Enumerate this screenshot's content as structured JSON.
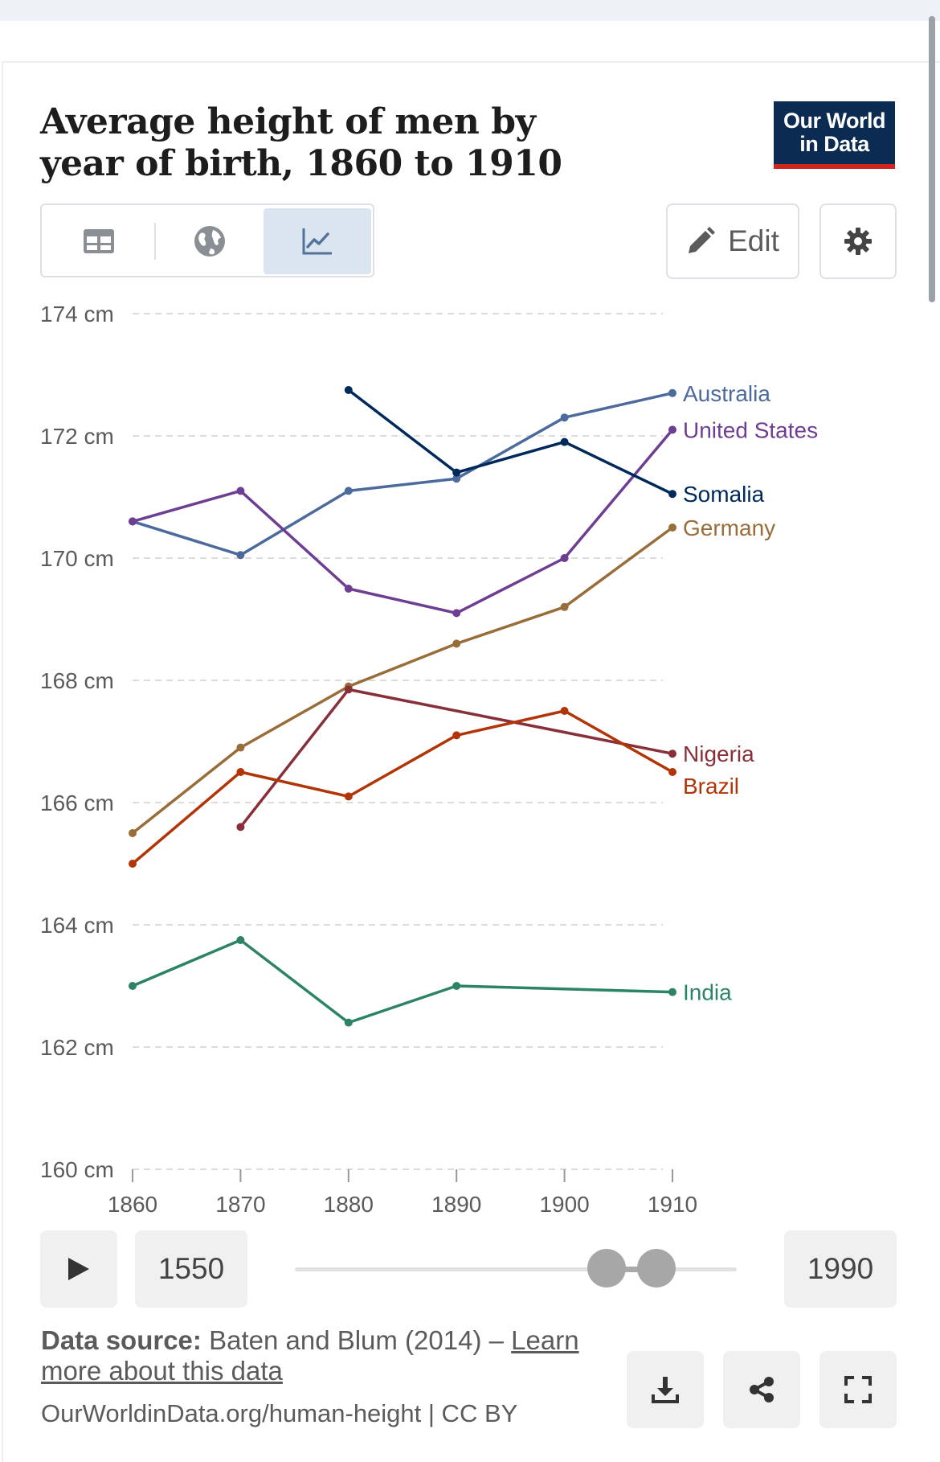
{
  "title": "Average height of men by year of birth, 1860 to 1910",
  "logo": {
    "line1": "Our World",
    "line2": "in Data"
  },
  "tabs": [
    {
      "name": "table",
      "icon": "table-icon",
      "active": false
    },
    {
      "name": "map",
      "icon": "globe-icon",
      "active": false
    },
    {
      "name": "chart",
      "icon": "line-chart-icon",
      "active": true
    }
  ],
  "toolbar": {
    "edit_label": "Edit"
  },
  "timeline": {
    "start_year": "1550",
    "end_year": "1990",
    "selected_range": [
      1860,
      1910
    ]
  },
  "footer": {
    "source_label": "Data source:",
    "source_text": " Baten and Blum (2014) – ",
    "learn_more": "Learn more about this data",
    "url_text": "OurWorldinData.org/human-height | CC BY"
  },
  "colors": {
    "brand_navy": "#0b2b53",
    "brand_red": "#ce261e",
    "active_tab": "#dbe5f0"
  },
  "chart_data": {
    "type": "line",
    "x": [
      1860,
      1870,
      1880,
      1890,
      1900,
      1910
    ],
    "x_ticks": [
      "1860",
      "1870",
      "1880",
      "1890",
      "1900",
      "1910"
    ],
    "y_ticks": [
      "160 cm",
      "162 cm",
      "164 cm",
      "166 cm",
      "168 cm",
      "170 cm",
      "172 cm",
      "174 cm"
    ],
    "ylim": [
      160,
      174
    ],
    "grid": true,
    "legend": "inline-right",
    "series": [
      {
        "name": "Australia",
        "color": "#4c6a9c",
        "values": [
          170.6,
          170.05,
          171.1,
          171.3,
          172.3,
          172.7
        ]
      },
      {
        "name": "United States",
        "color": "#6d3e91",
        "values": [
          170.6,
          171.1,
          169.5,
          169.1,
          170.0,
          172.1
        ]
      },
      {
        "name": "Somalia",
        "color": "#00295b",
        "values": [
          null,
          null,
          172.75,
          171.4,
          171.9,
          171.05
        ]
      },
      {
        "name": "Germany",
        "color": "#996d39",
        "values": [
          165.5,
          166.9,
          167.9,
          168.6,
          169.2,
          170.5
        ]
      },
      {
        "name": "Nigeria",
        "color": "#883039",
        "values": [
          null,
          165.6,
          167.85,
          null,
          null,
          166.8
        ]
      },
      {
        "name": "Brazil",
        "color": "#b13507",
        "values": [
          165.0,
          166.5,
          166.1,
          167.1,
          167.5,
          166.5
        ]
      },
      {
        "name": "India",
        "color": "#2c8465",
        "values": [
          163.0,
          163.75,
          162.4,
          163.0,
          null,
          162.9
        ]
      }
    ]
  }
}
